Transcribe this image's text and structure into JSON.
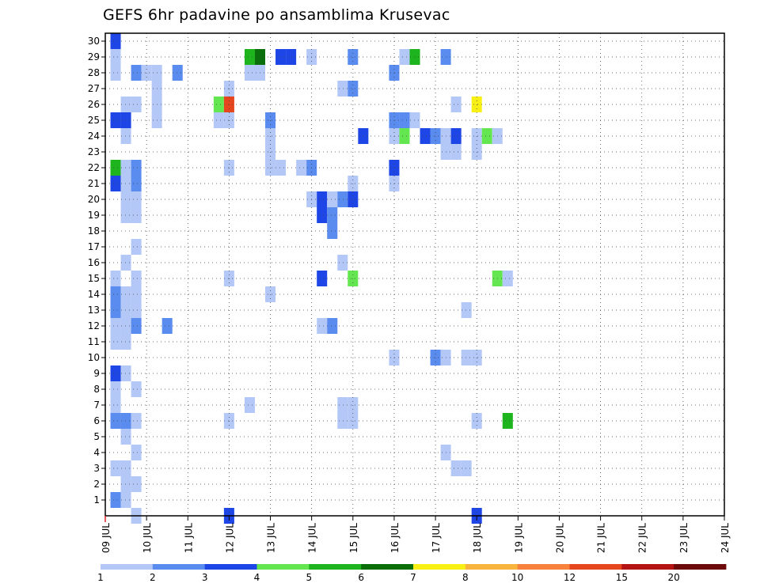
{
  "chart_data": {
    "type": "heatmap",
    "title": "GEFS 6hr padavine po ansamblima Krusevac",
    "xlabel": "",
    "ylabel": "",
    "x_ticks": [
      "09 JUL",
      "10 JUL",
      "11 JUL",
      "12 JUL",
      "13 JUL",
      "14 JUL",
      "15 JUL",
      "16 JUL",
      "17 JUL",
      "18 JUL",
      "19 JUL",
      "20 JUL",
      "21 JUL",
      "22 JUL",
      "23 JUL",
      "24 JUL"
    ],
    "y_ticks": [
      "1",
      "2",
      "3",
      "4",
      "5",
      "6",
      "7",
      "8",
      "9",
      "10",
      "11",
      "12",
      "13",
      "14",
      "15",
      "16",
      "17",
      "18",
      "19",
      "20",
      "21",
      "22",
      "23",
      "24",
      "25",
      "26",
      "27",
      "28",
      "29",
      "30"
    ],
    "y_range": [
      0,
      30
    ],
    "x_step_hours": 6,
    "grid": true,
    "legend": {
      "placement": "bottom",
      "levels": [
        "1",
        "2",
        "3",
        "4",
        "5",
        "6",
        "7",
        "8",
        "10",
        "12",
        "15",
        "20"
      ],
      "colors": [
        "#b4c8f8",
        "#5a8cf0",
        "#1e46e6",
        "#64e650",
        "#1eb41e",
        "#0a6e0a",
        "#f8f014",
        "#f8b43c",
        "#f8823c",
        "#e6461e",
        "#b41414",
        "#6e0a0a"
      ]
    },
    "cells": [
      {
        "t": 1,
        "m": 30,
        "c": 3
      },
      {
        "t": 1,
        "m": 29,
        "c": 1
      },
      {
        "t": 14,
        "m": 29,
        "c": 5
      },
      {
        "t": 15,
        "m": 29,
        "c": 6
      },
      {
        "t": 17,
        "m": 29,
        "c": 3
      },
      {
        "t": 18,
        "m": 29,
        "c": 3
      },
      {
        "t": 20,
        "m": 29,
        "c": 1
      },
      {
        "t": 24,
        "m": 29,
        "c": 2
      },
      {
        "t": 29,
        "m": 29,
        "c": 1
      },
      {
        "t": 30,
        "m": 29,
        "c": 5
      },
      {
        "t": 33,
        "m": 29,
        "c": 2
      },
      {
        "t": 1,
        "m": 28,
        "c": 1
      },
      {
        "t": 3,
        "m": 28,
        "c": 2
      },
      {
        "t": 4,
        "m": 28,
        "c": 1
      },
      {
        "t": 5,
        "m": 28,
        "c": 1
      },
      {
        "t": 7,
        "m": 28,
        "c": 2
      },
      {
        "t": 14,
        "m": 28,
        "c": 1
      },
      {
        "t": 15,
        "m": 28,
        "c": 1
      },
      {
        "t": 28,
        "m": 28,
        "c": 2
      },
      {
        "t": 5,
        "m": 27,
        "c": 1
      },
      {
        "t": 12,
        "m": 27,
        "c": 1
      },
      {
        "t": 23,
        "m": 27,
        "c": 1
      },
      {
        "t": 24,
        "m": 27,
        "c": 2
      },
      {
        "t": 2,
        "m": 26,
        "c": 1
      },
      {
        "t": 3,
        "m": 26,
        "c": 1
      },
      {
        "t": 5,
        "m": 26,
        "c": 1
      },
      {
        "t": 11,
        "m": 26,
        "c": 4
      },
      {
        "t": 12,
        "m": 26,
        "c": 10
      },
      {
        "t": 34,
        "m": 26,
        "c": 1
      },
      {
        "t": 36,
        "m": 26,
        "c": 7
      },
      {
        "t": 1,
        "m": 25,
        "c": 3
      },
      {
        "t": 2,
        "m": 25,
        "c": 3
      },
      {
        "t": 5,
        "m": 25,
        "c": 1
      },
      {
        "t": 11,
        "m": 25,
        "c": 1
      },
      {
        "t": 12,
        "m": 25,
        "c": 1
      },
      {
        "t": 16,
        "m": 25,
        "c": 2
      },
      {
        "t": 28,
        "m": 25,
        "c": 2
      },
      {
        "t": 29,
        "m": 25,
        "c": 2
      },
      {
        "t": 30,
        "m": 25,
        "c": 1
      },
      {
        "t": 2,
        "m": 24,
        "c": 1
      },
      {
        "t": 16,
        "m": 24,
        "c": 1
      },
      {
        "t": 25,
        "m": 24,
        "c": 3
      },
      {
        "t": 28,
        "m": 24,
        "c": 1
      },
      {
        "t": 29,
        "m": 24,
        "c": 4
      },
      {
        "t": 31,
        "m": 24,
        "c": 3
      },
      {
        "t": 32,
        "m": 24,
        "c": 2
      },
      {
        "t": 33,
        "m": 24,
        "c": 1
      },
      {
        "t": 34,
        "m": 24,
        "c": 3
      },
      {
        "t": 36,
        "m": 24,
        "c": 1
      },
      {
        "t": 37,
        "m": 24,
        "c": 4
      },
      {
        "t": 38,
        "m": 24,
        "c": 1
      },
      {
        "t": 16,
        "m": 23,
        "c": 1
      },
      {
        "t": 33,
        "m": 23,
        "c": 1
      },
      {
        "t": 34,
        "m": 23,
        "c": 1
      },
      {
        "t": 36,
        "m": 23,
        "c": 1
      },
      {
        "t": 1,
        "m": 22,
        "c": 5
      },
      {
        "t": 2,
        "m": 22,
        "c": 1
      },
      {
        "t": 3,
        "m": 22,
        "c": 2
      },
      {
        "t": 12,
        "m": 22,
        "c": 1
      },
      {
        "t": 16,
        "m": 22,
        "c": 1
      },
      {
        "t": 17,
        "m": 22,
        "c": 1
      },
      {
        "t": 19,
        "m": 22,
        "c": 1
      },
      {
        "t": 20,
        "m": 22,
        "c": 2
      },
      {
        "t": 28,
        "m": 22,
        "c": 3
      },
      {
        "t": 1,
        "m": 21,
        "c": 3
      },
      {
        "t": 2,
        "m": 21,
        "c": 1
      },
      {
        "t": 3,
        "m": 21,
        "c": 2
      },
      {
        "t": 24,
        "m": 21,
        "c": 1
      },
      {
        "t": 28,
        "m": 21,
        "c": 1
      },
      {
        "t": 2,
        "m": 20,
        "c": 1
      },
      {
        "t": 3,
        "m": 20,
        "c": 1
      },
      {
        "t": 20,
        "m": 20,
        "c": 1
      },
      {
        "t": 21,
        "m": 20,
        "c": 3
      },
      {
        "t": 22,
        "m": 20,
        "c": 1
      },
      {
        "t": 23,
        "m": 20,
        "c": 2
      },
      {
        "t": 24,
        "m": 20,
        "c": 3
      },
      {
        "t": 2,
        "m": 19,
        "c": 1
      },
      {
        "t": 3,
        "m": 19,
        "c": 1
      },
      {
        "t": 21,
        "m": 19,
        "c": 3
      },
      {
        "t": 22,
        "m": 19,
        "c": 2
      },
      {
        "t": 22,
        "m": 18,
        "c": 2
      },
      {
        "t": 3,
        "m": 17,
        "c": 1
      },
      {
        "t": 2,
        "m": 16,
        "c": 1
      },
      {
        "t": 23,
        "m": 16,
        "c": 1
      },
      {
        "t": 1,
        "m": 15,
        "c": 1
      },
      {
        "t": 3,
        "m": 15,
        "c": 1
      },
      {
        "t": 12,
        "m": 15,
        "c": 1
      },
      {
        "t": 21,
        "m": 15,
        "c": 3
      },
      {
        "t": 24,
        "m": 15,
        "c": 4
      },
      {
        "t": 38,
        "m": 15,
        "c": 4
      },
      {
        "t": 39,
        "m": 15,
        "c": 1
      },
      {
        "t": 1,
        "m": 14,
        "c": 2
      },
      {
        "t": 2,
        "m": 14,
        "c": 1
      },
      {
        "t": 3,
        "m": 14,
        "c": 1
      },
      {
        "t": 16,
        "m": 14,
        "c": 1
      },
      {
        "t": 1,
        "m": 13,
        "c": 2
      },
      {
        "t": 2,
        "m": 13,
        "c": 1
      },
      {
        "t": 3,
        "m": 13,
        "c": 1
      },
      {
        "t": 35,
        "m": 13,
        "c": 1
      },
      {
        "t": 1,
        "m": 12,
        "c": 1
      },
      {
        "t": 2,
        "m": 12,
        "c": 1
      },
      {
        "t": 3,
        "m": 12,
        "c": 2
      },
      {
        "t": 6,
        "m": 12,
        "c": 2
      },
      {
        "t": 21,
        "m": 12,
        "c": 1
      },
      {
        "t": 22,
        "m": 12,
        "c": 2
      },
      {
        "t": 1,
        "m": 11,
        "c": 1
      },
      {
        "t": 2,
        "m": 11,
        "c": 1
      },
      {
        "t": 28,
        "m": 10,
        "c": 1
      },
      {
        "t": 32,
        "m": 10,
        "c": 2
      },
      {
        "t": 33,
        "m": 10,
        "c": 1
      },
      {
        "t": 35,
        "m": 10,
        "c": 1
      },
      {
        "t": 36,
        "m": 10,
        "c": 1
      },
      {
        "t": 1,
        "m": 9,
        "c": 3
      },
      {
        "t": 2,
        "m": 9,
        "c": 1
      },
      {
        "t": 1,
        "m": 8,
        "c": 1
      },
      {
        "t": 3,
        "m": 8,
        "c": 1
      },
      {
        "t": 1,
        "m": 7,
        "c": 1
      },
      {
        "t": 14,
        "m": 7,
        "c": 1
      },
      {
        "t": 23,
        "m": 7,
        "c": 1
      },
      {
        "t": 24,
        "m": 7,
        "c": 1
      },
      {
        "t": 1,
        "m": 6,
        "c": 2
      },
      {
        "t": 2,
        "m": 6,
        "c": 2
      },
      {
        "t": 3,
        "m": 6,
        "c": 1
      },
      {
        "t": 12,
        "m": 6,
        "c": 1
      },
      {
        "t": 23,
        "m": 6,
        "c": 1
      },
      {
        "t": 24,
        "m": 6,
        "c": 1
      },
      {
        "t": 36,
        "m": 6,
        "c": 1
      },
      {
        "t": 39,
        "m": 6,
        "c": 5
      },
      {
        "t": 2,
        "m": 5,
        "c": 1
      },
      {
        "t": 3,
        "m": 4,
        "c": 1
      },
      {
        "t": 33,
        "m": 4,
        "c": 1
      },
      {
        "t": 1,
        "m": 3,
        "c": 1
      },
      {
        "t": 2,
        "m": 3,
        "c": 1
      },
      {
        "t": 34,
        "m": 3,
        "c": 1
      },
      {
        "t": 35,
        "m": 3,
        "c": 1
      },
      {
        "t": 2,
        "m": 2,
        "c": 1
      },
      {
        "t": 3,
        "m": 2,
        "c": 1
      },
      {
        "t": 1,
        "m": 1,
        "c": 2
      },
      {
        "t": 2,
        "m": 1,
        "c": 1
      },
      {
        "t": 3,
        "m": 0,
        "c": 1
      },
      {
        "t": 12,
        "m": 0,
        "c": 3
      },
      {
        "t": 36,
        "m": 0,
        "c": 3
      }
    ]
  }
}
